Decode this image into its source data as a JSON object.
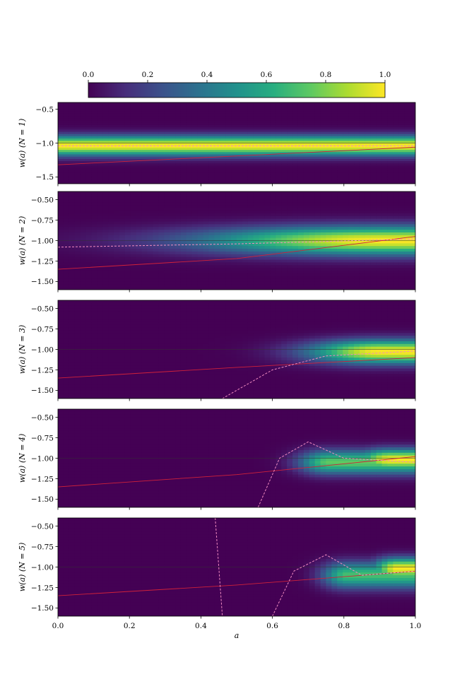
{
  "chart_data": {
    "type": "heatmap",
    "colormap": "viridis",
    "colorbar": {
      "location": "top",
      "range": [
        0.0,
        1.0
      ],
      "tick_labels": [
        "0.0",
        "0.2",
        "0.4",
        "0.6",
        "0.8",
        "1.0"
      ],
      "tick_values": [
        0.0,
        0.2,
        0.4,
        0.6,
        0.8,
        1.0
      ]
    },
    "xlabel": "a",
    "xlim": [
      0.0,
      1.0
    ],
    "x_tick_labels": [
      "0.0",
      "0.2",
      "0.4",
      "0.6",
      "0.8",
      "1.0"
    ],
    "x_tick_values": [
      0.0,
      0.2,
      0.4,
      0.6,
      0.8,
      1.0
    ],
    "reference_line_w": -1.0,
    "colors": {
      "red_line": "#d0213a",
      "dashed_line": "#f08ac0",
      "contour": "#d8c8f0",
      "ref_line": "#333333"
    },
    "panels": [
      {
        "ylabel": "w(a) (N = 1)",
        "ylim": [
          -1.6,
          -0.4
        ],
        "y_tick_labels": [
          "−0.5",
          "−1.0",
          "−1.5"
        ],
        "y_tick_values": [
          -0.5,
          -1.0,
          -1.5
        ],
        "density_modes": [
          {
            "a": [
              0.0,
              1.0
            ],
            "w": -1.04,
            "sigma_w": 0.1,
            "amp": 1.0
          }
        ],
        "red_line": {
          "a": [
            0.0,
            1.0
          ],
          "w": [
            -1.32,
            -1.06
          ]
        },
        "dashed_line": {
          "a": [
            0.0,
            1.0
          ],
          "w": [
            -1.04,
            -1.04
          ]
        }
      },
      {
        "ylabel": "w(a) (N = 2)",
        "ylim": [
          -1.6,
          -0.4
        ],
        "y_tick_labels": [
          "−0.50",
          "−0.75",
          "−1.00",
          "−1.25",
          "−1.50"
        ],
        "y_tick_values": [
          -0.5,
          -0.75,
          -1.0,
          -1.25,
          -1.5
        ],
        "density_modes": [
          {
            "a_center": 0.9,
            "w": -1.0,
            "sigma_a": 0.35,
            "sigma_w": 0.12,
            "amp": 1.0
          }
        ],
        "red_line": {
          "a": [
            0.0,
            0.5,
            1.0
          ],
          "w": [
            -1.35,
            -1.22,
            -0.95
          ]
        },
        "dashed_line": {
          "a": [
            0.0,
            0.5,
            1.0
          ],
          "w": [
            -1.08,
            -1.04,
            -0.98
          ]
        }
      },
      {
        "ylabel": "w(a) (N = 3)",
        "ylim": [
          -1.6,
          -0.4
        ],
        "y_tick_labels": [
          "−0.50",
          "−0.75",
          "−1.00",
          "−1.25",
          "−1.50"
        ],
        "y_tick_values": [
          -0.5,
          -0.75,
          -1.0,
          -1.25,
          -1.5
        ],
        "density_modes": [
          {
            "a_center": 0.9,
            "w": -1.03,
            "sigma_a": 0.14,
            "sigma_w": 0.1,
            "amp": 1.0
          }
        ],
        "red_line": {
          "a": [
            0.0,
            0.5,
            1.0
          ],
          "w": [
            -1.35,
            -1.22,
            -1.1
          ]
        },
        "dashed_line": {
          "a": [
            0.46,
            0.6,
            0.75,
            1.0
          ],
          "w": [
            -1.6,
            -1.25,
            -1.08,
            -1.02
          ]
        }
      },
      {
        "ylabel": "w(a) (N = 4)",
        "ylim": [
          -1.6,
          -0.4
        ],
        "y_tick_labels": [
          "−0.50",
          "−0.75",
          "−1.00",
          "−1.25",
          "−1.50"
        ],
        "y_tick_values": [
          -0.5,
          -0.75,
          -1.0,
          -1.25,
          -1.5
        ],
        "density_modes": [
          {
            "a_center": 0.93,
            "w": -1.02,
            "sigma_a": 0.07,
            "sigma_w": 0.09,
            "amp": 1.0
          },
          {
            "a_center": 0.76,
            "w": -1.05,
            "sigma_a": 0.06,
            "sigma_w": 0.1,
            "amp": 0.75
          }
        ],
        "red_line": {
          "a": [
            0.0,
            0.5,
            1.0
          ],
          "w": [
            -1.35,
            -1.2,
            -0.98
          ]
        },
        "dashed_line": {
          "a": [
            0.56,
            0.62,
            0.7,
            0.8,
            1.0
          ],
          "w": [
            -1.6,
            -1.0,
            -0.8,
            -1.0,
            -1.05
          ]
        }
      },
      {
        "ylabel": "w(a) (N = 5)",
        "ylim": [
          -1.6,
          -0.4
        ],
        "y_tick_labels": [
          "−0.50",
          "−0.75",
          "−1.00",
          "−1.25",
          "−1.50"
        ],
        "y_tick_values": [
          -0.5,
          -0.75,
          -1.0,
          -1.25,
          -1.5
        ],
        "density_modes": [
          {
            "a_center": 0.95,
            "w": -1.02,
            "sigma_a": 0.05,
            "sigma_w": 0.09,
            "amp": 1.0
          },
          {
            "a_center": 0.81,
            "w": -1.1,
            "sigma_a": 0.05,
            "sigma_w": 0.11,
            "amp": 0.7
          }
        ],
        "red_line": {
          "a": [
            0.0,
            0.5,
            1.0
          ],
          "w": [
            -1.35,
            -1.22,
            -1.05
          ]
        },
        "dashed_line": {
          "a": [
            0.6,
            0.66,
            0.75,
            0.85,
            1.0
          ],
          "w": [
            -1.6,
            -1.05,
            -0.85,
            -1.1,
            -1.05
          ]
        },
        "dashed_line_2": {
          "a": [
            0.44,
            0.46
          ],
          "w": [
            -0.4,
            -1.6
          ]
        }
      }
    ]
  }
}
